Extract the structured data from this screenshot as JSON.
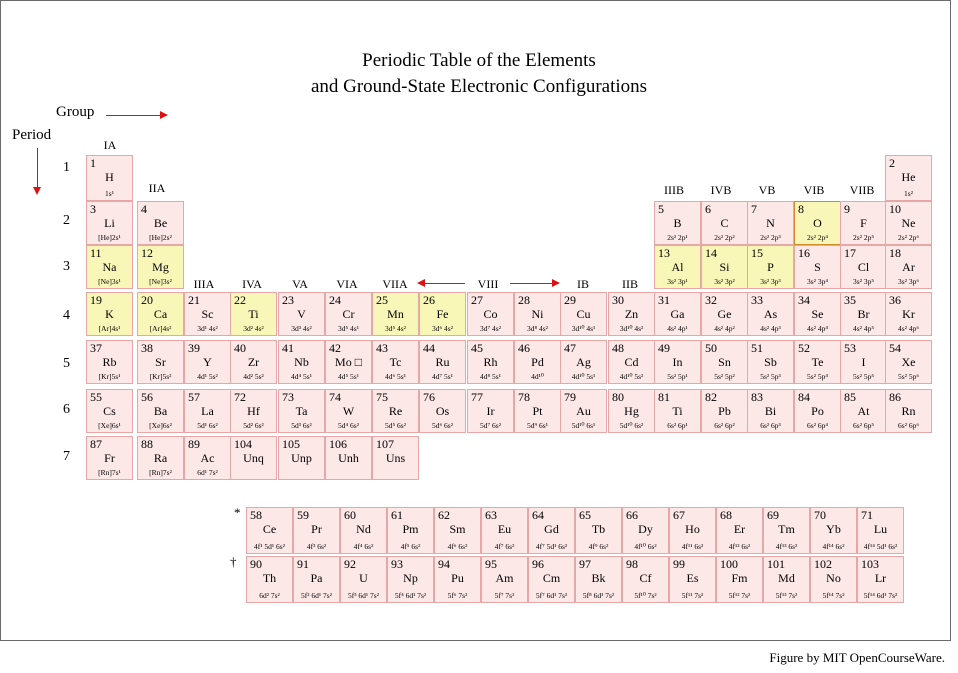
{
  "title_line1": "Periodic Table of the Elements",
  "title_line2": "and Ground-State Electronic Configurations",
  "group_label": "Group",
  "period_label": "Period",
  "credit": "Figure by MIT OpenCourseWare.",
  "periods": [
    "1",
    "2",
    "3",
    "4",
    "5",
    "6",
    "7"
  ],
  "groups": {
    "g1": "IA",
    "g2": "IIA",
    "g3": "IIIA",
    "g4": "IVA",
    "g5": "VA",
    "g6": "VIA",
    "g7": "VIIA",
    "g8": "VIII",
    "g9": "IB",
    "g10": "IIB",
    "g13": "IIIB",
    "g14": "IVB",
    "g15": "VB",
    "g16": "VIB",
    "g17": "VIIB"
  },
  "markers": {
    "star": "*",
    "dagger": "†"
  },
  "elements": [
    {
      "n": "1",
      "s": "H",
      "c": "1s¹",
      "row": 1,
      "col": 1
    },
    {
      "n": "2",
      "s": "He",
      "c": "1s²",
      "row": 1,
      "col": 18
    },
    {
      "n": "3",
      "s": "Li",
      "c": "[He]2s¹",
      "row": 2,
      "col": 1
    },
    {
      "n": "4",
      "s": "Be",
      "c": "[He]2s²",
      "row": 2,
      "col": 2
    },
    {
      "n": "5",
      "s": "B",
      "c": "2s² 2p¹",
      "row": 2,
      "col": 13
    },
    {
      "n": "6",
      "s": "C",
      "c": "2s² 2p²",
      "row": 2,
      "col": 14
    },
    {
      "n": "7",
      "s": "N",
      "c": "2s² 2p³",
      "row": 2,
      "col": 15
    },
    {
      "n": "8",
      "s": "O",
      "c": "2s² 2p⁴",
      "row": 2,
      "col": 16,
      "hl": true,
      "sel": true
    },
    {
      "n": "9",
      "s": "F",
      "c": "2s² 2p⁵",
      "row": 2,
      "col": 17
    },
    {
      "n": "10",
      "s": "Ne",
      "c": "2s² 2p⁶",
      "row": 2,
      "col": 18
    },
    {
      "n": "11",
      "s": "Na",
      "c": "[Ne]3s¹",
      "row": 3,
      "col": 1,
      "hl": true
    },
    {
      "n": "12",
      "s": "Mg",
      "c": "[Ne]3s²",
      "row": 3,
      "col": 2,
      "hl": true
    },
    {
      "n": "13",
      "s": "Al",
      "c": "3s² 3p¹",
      "row": 3,
      "col": 13,
      "hl": true
    },
    {
      "n": "14",
      "s": "Si",
      "c": "3s² 3p²",
      "row": 3,
      "col": 14,
      "hl": true
    },
    {
      "n": "15",
      "s": "P",
      "c": "3s² 3p³",
      "row": 3,
      "col": 15,
      "hl": true
    },
    {
      "n": "16",
      "s": "S",
      "c": "3s² 3p⁴",
      "row": 3,
      "col": 16
    },
    {
      "n": "17",
      "s": "Cl",
      "c": "3s² 3p⁵",
      "row": 3,
      "col": 17
    },
    {
      "n": "18",
      "s": "Ar",
      "c": "3s² 3p⁶",
      "row": 3,
      "col": 18
    },
    {
      "n": "19",
      "s": "K",
      "c": "[Ar]4s¹",
      "row": 4,
      "col": 1,
      "hl": true
    },
    {
      "n": "20",
      "s": "Ca",
      "c": "[Ar]4s²",
      "row": 4,
      "col": 2,
      "hl": true
    },
    {
      "n": "21",
      "s": "Sc",
      "c": "3d¹ 4s²",
      "row": 4,
      "col": 3
    },
    {
      "n": "22",
      "s": "Ti",
      "c": "3d² 4s²",
      "row": 4,
      "col": 4,
      "hl": true
    },
    {
      "n": "23",
      "s": "V",
      "c": "3d³ 4s²",
      "row": 4,
      "col": 5
    },
    {
      "n": "24",
      "s": "Cr",
      "c": "3d⁵ 4s¹",
      "row": 4,
      "col": 6
    },
    {
      "n": "25",
      "s": "Mn",
      "c": "3d⁵ 4s²",
      "row": 4,
      "col": 7,
      "hl": true
    },
    {
      "n": "26",
      "s": "Fe",
      "c": "3d⁶ 4s²",
      "row": 4,
      "col": 8,
      "hl": true
    },
    {
      "n": "27",
      "s": "Co",
      "c": "3d⁷ 4s²",
      "row": 4,
      "col": 9
    },
    {
      "n": "28",
      "s": "Ni",
      "c": "3d⁸ 4s²",
      "row": 4,
      "col": 10
    },
    {
      "n": "29",
      "s": "Cu",
      "c": "3d¹⁰ 4s¹",
      "row": 4,
      "col": 11
    },
    {
      "n": "30",
      "s": "Zn",
      "c": "3d¹⁰ 4s²",
      "row": 4,
      "col": 12
    },
    {
      "n": "31",
      "s": "Ga",
      "c": "4s² 4p¹",
      "row": 4,
      "col": 13
    },
    {
      "n": "32",
      "s": "Ge",
      "c": "4s² 4p²",
      "row": 4,
      "col": 14
    },
    {
      "n": "33",
      "s": "As",
      "c": "4s² 4p³",
      "row": 4,
      "col": 15
    },
    {
      "n": "34",
      "s": "Se",
      "c": "4s² 4p⁴",
      "row": 4,
      "col": 16
    },
    {
      "n": "35",
      "s": "Br",
      "c": "4s² 4p⁵",
      "row": 4,
      "col": 17
    },
    {
      "n": "36",
      "s": "Kr",
      "c": "4s² 4p⁶",
      "row": 4,
      "col": 18
    },
    {
      "n": "37",
      "s": "Rb",
      "c": "[Kr]5s¹",
      "row": 5,
      "col": 1
    },
    {
      "n": "38",
      "s": "Sr",
      "c": "[Kr]5s²",
      "row": 5,
      "col": 2
    },
    {
      "n": "39",
      "s": "Y",
      "c": "4d¹ 5s²",
      "row": 5,
      "col": 3
    },
    {
      "n": "40",
      "s": "Zr",
      "c": "4d² 5s²",
      "row": 5,
      "col": 4
    },
    {
      "n": "41",
      "s": "Nb",
      "c": "4d⁴ 5s¹",
      "row": 5,
      "col": 5
    },
    {
      "n": "42",
      "s": "Mo □",
      "c": "4d⁵ 5s¹",
      "row": 5,
      "col": 6
    },
    {
      "n": "43",
      "s": "Tc",
      "c": "4d⁶ 5s¹",
      "row": 5,
      "col": 7
    },
    {
      "n": "44",
      "s": "Ru",
      "c": "4d⁷ 5s¹",
      "row": 5,
      "col": 8
    },
    {
      "n": "45",
      "s": "Rh",
      "c": "4d⁸ 5s¹",
      "row": 5,
      "col": 9
    },
    {
      "n": "46",
      "s": "Pd",
      "c": "4d¹⁰",
      "row": 5,
      "col": 10
    },
    {
      "n": "47",
      "s": "Ag",
      "c": "4d¹⁰ 5s¹",
      "row": 5,
      "col": 11
    },
    {
      "n": "48",
      "s": "Cd",
      "c": "4d¹⁰ 5s²",
      "row": 5,
      "col": 12
    },
    {
      "n": "49",
      "s": "In",
      "c": "5s² 5p¹",
      "row": 5,
      "col": 13
    },
    {
      "n": "50",
      "s": "Sn",
      "c": "5s² 5p²",
      "row": 5,
      "col": 14
    },
    {
      "n": "51",
      "s": "Sb",
      "c": "5s² 5p³",
      "row": 5,
      "col": 15
    },
    {
      "n": "52",
      "s": "Te",
      "c": "5s² 5p⁴",
      "row": 5,
      "col": 16
    },
    {
      "n": "53",
      "s": "I",
      "c": "5s² 5p⁵",
      "row": 5,
      "col": 17
    },
    {
      "n": "54",
      "s": "Xe",
      "c": "5s² 5p⁶",
      "row": 5,
      "col": 18
    },
    {
      "n": "55",
      "s": "Cs",
      "c": "[Xe]6s¹",
      "row": 6,
      "col": 1
    },
    {
      "n": "56",
      "s": "Ba",
      "c": "[Xe]6s²",
      "row": 6,
      "col": 2
    },
    {
      "n": "57",
      "s": "La",
      "c": "5d¹ 6s²",
      "row": 6,
      "col": 3
    },
    {
      "n": "72",
      "s": "Hf",
      "c": "5d² 6s²",
      "row": 6,
      "col": 4
    },
    {
      "n": "73",
      "s": "Ta",
      "c": "5d³ 6s²",
      "row": 6,
      "col": 5
    },
    {
      "n": "74",
      "s": "W",
      "c": "5d⁴ 6s²",
      "row": 6,
      "col": 6
    },
    {
      "n": "75",
      "s": "Re",
      "c": "5d⁵ 6s²",
      "row": 6,
      "col": 7
    },
    {
      "n": "76",
      "s": "Os",
      "c": "5d⁶ 6s²",
      "row": 6,
      "col": 8
    },
    {
      "n": "77",
      "s": "Ir",
      "c": "5d⁷ 6s²",
      "row": 6,
      "col": 9
    },
    {
      "n": "78",
      "s": "Pt",
      "c": "5d⁹ 6s¹",
      "row": 6,
      "col": 10
    },
    {
      "n": "79",
      "s": "Au",
      "c": "5d¹⁰ 6s¹",
      "row": 6,
      "col": 11
    },
    {
      "n": "80",
      "s": "Hg",
      "c": "5d¹⁰ 6s²",
      "row": 6,
      "col": 12
    },
    {
      "n": "81",
      "s": "Ti",
      "c": "6s² 6p¹",
      "row": 6,
      "col": 13
    },
    {
      "n": "82",
      "s": "Pb",
      "c": "6s² 6p²",
      "row": 6,
      "col": 14
    },
    {
      "n": "83",
      "s": "Bi",
      "c": "6s² 6p³",
      "row": 6,
      "col": 15
    },
    {
      "n": "84",
      "s": "Po",
      "c": "6s² 6p⁴",
      "row": 6,
      "col": 16
    },
    {
      "n": "85",
      "s": "At",
      "c": "6s² 6p⁵",
      "row": 6,
      "col": 17
    },
    {
      "n": "86",
      "s": "Rn",
      "c": "6s² 6p⁶",
      "row": 6,
      "col": 18
    },
    {
      "n": "87",
      "s": "Fr",
      "c": "[Rn]7s¹",
      "row": 7,
      "col": 1
    },
    {
      "n": "88",
      "s": "Ra",
      "c": "[Rn]7s²",
      "row": 7,
      "col": 2
    },
    {
      "n": "89",
      "s": "Ac",
      "c": "6d¹ 7s²",
      "row": 7,
      "col": 3
    },
    {
      "n": "104",
      "s": "Unq",
      "c": "",
      "row": 7,
      "col": 4
    },
    {
      "n": "105",
      "s": "Unp",
      "c": "",
      "row": 7,
      "col": 5
    },
    {
      "n": "106",
      "s": "Unh",
      "c": "",
      "row": 7,
      "col": 6
    },
    {
      "n": "107",
      "s": "Uns",
      "c": "",
      "row": 7,
      "col": 7
    }
  ],
  "lanthanides": [
    {
      "n": "58",
      "s": "Ce",
      "c": "4f¹ 5d¹ 6s²"
    },
    {
      "n": "59",
      "s": "Pr",
      "c": "4f³ 6s²"
    },
    {
      "n": "60",
      "s": "Nd",
      "c": "4f⁴ 6s²"
    },
    {
      "n": "61",
      "s": "Pm",
      "c": "4f⁵ 6s²"
    },
    {
      "n": "62",
      "s": "Sm",
      "c": "4f⁶ 6s²"
    },
    {
      "n": "63",
      "s": "Eu",
      "c": "4f⁷ 6s²"
    },
    {
      "n": "64",
      "s": "Gd",
      "c": "4f⁷ 5d¹ 6s²"
    },
    {
      "n": "65",
      "s": "Tb",
      "c": "4f⁹ 6s²"
    },
    {
      "n": "66",
      "s": "Dy",
      "c": "4f¹⁰ 6s²"
    },
    {
      "n": "67",
      "s": "Ho",
      "c": "4f¹¹ 6s²"
    },
    {
      "n": "68",
      "s": "Er",
      "c": "4f¹² 6s²"
    },
    {
      "n": "69",
      "s": "Tm",
      "c": "4f¹³ 6s²"
    },
    {
      "n": "70",
      "s": "Yb",
      "c": "4f¹⁴ 6s²"
    },
    {
      "n": "71",
      "s": "Lu",
      "c": "4f¹⁴ 5d¹ 6s²"
    }
  ],
  "actinides": [
    {
      "n": "90",
      "s": "Th",
      "c": "6d² 7s²"
    },
    {
      "n": "91",
      "s": "Pa",
      "c": "5f² 6d¹ 7s²"
    },
    {
      "n": "92",
      "s": "U",
      "c": "5f³ 6d¹ 7s²"
    },
    {
      "n": "93",
      "s": "Np",
      "c": "5f⁴ 6d¹ 7s²"
    },
    {
      "n": "94",
      "s": "Pu",
      "c": "5f⁶ 7s²"
    },
    {
      "n": "95",
      "s": "Am",
      "c": "5f⁷ 7s²"
    },
    {
      "n": "96",
      "s": "Cm",
      "c": "5f⁷ 6d¹ 7s²"
    },
    {
      "n": "97",
      "s": "Bk",
      "c": "5f⁸ 6d¹ 7s²"
    },
    {
      "n": "98",
      "s": "Cf",
      "c": "5f¹⁰ 7s²"
    },
    {
      "n": "99",
      "s": "Es",
      "c": "5f¹¹ 7s²"
    },
    {
      "n": "100",
      "s": "Fm",
      "c": "5f¹² 7s²"
    },
    {
      "n": "101",
      "s": "Md",
      "c": "5f¹³ 7s²"
    },
    {
      "n": "102",
      "s": "No",
      "c": "5f¹⁴ 7s²"
    },
    {
      "n": "103",
      "s": "Lr",
      "c": "5f¹⁴ 6d¹ 7s²"
    }
  ],
  "colors": {
    "cell_bg": "#fde8e8",
    "cell_border": "#e8a7a7",
    "highlight_bg": "#f9f7b8",
    "selected_border": "#d08a2a",
    "arrow": "#dd1111"
  }
}
